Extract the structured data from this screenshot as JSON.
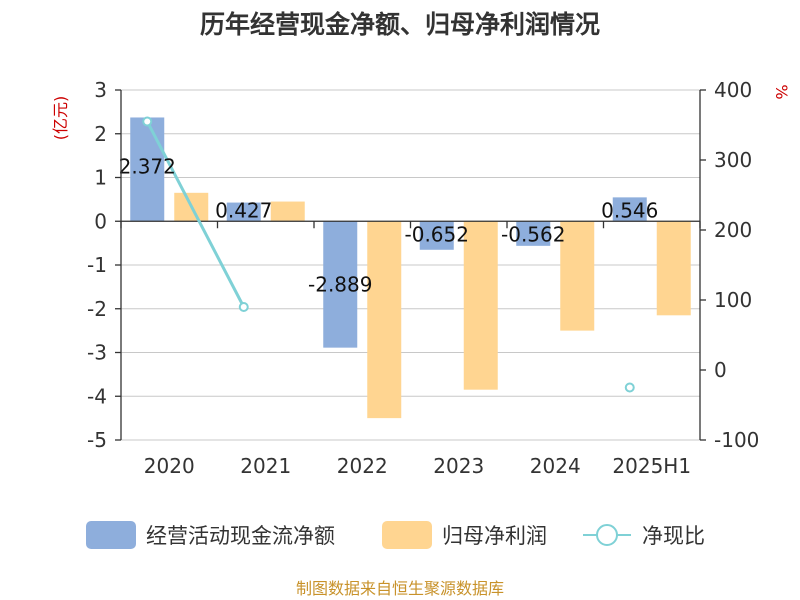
{
  "chart_data": {
    "type": "bar",
    "title": "历年经营现金净额、归母净利润情况",
    "categories": [
      "2020",
      "2021",
      "2022",
      "2023",
      "2024",
      "2025H1"
    ],
    "series": [
      {
        "name": "经营活动现金流净额",
        "axis": "left",
        "kind": "bar",
        "color": "#8eaedc",
        "values": [
          2.372,
          0.427,
          -2.889,
          -0.652,
          -0.562,
          0.546
        ],
        "labels": [
          "2.372",
          "0.427",
          "-2.889",
          "-0.652",
          "-0.562",
          "0.546"
        ]
      },
      {
        "name": "归母净利润",
        "axis": "left",
        "kind": "bar",
        "color": "#ffd591",
        "values": [
          0.65,
          0.45,
          -4.5,
          -3.85,
          -2.5,
          -2.15
        ]
      },
      {
        "name": "净现比",
        "axis": "right",
        "kind": "line",
        "color": "#7fd1d6",
        "values": [
          355,
          90,
          null,
          null,
          null,
          -25
        ]
      }
    ],
    "left_axis": {
      "unit": "(亿元)",
      "ylim": [
        -5,
        3
      ],
      "ticks": [
        "3",
        "2",
        "1",
        "0",
        "-1",
        "-2",
        "-3",
        "-4",
        "-5"
      ]
    },
    "right_axis": {
      "unit": "%",
      "ylim": [
        -100,
        400
      ],
      "ticks": [
        "400",
        "300",
        "200",
        "100",
        "0",
        "-100"
      ]
    },
    "grid": true,
    "legend": "bottom"
  },
  "source": "制图数据来自恒生聚源数据库"
}
